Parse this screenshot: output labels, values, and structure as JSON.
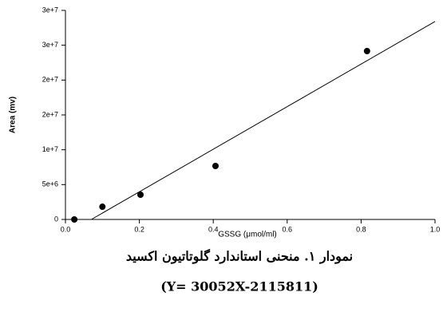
{
  "chart_data": {
    "type": "scatter",
    "xlabel": "GSSG (μmol/ml)",
    "ylabel": "Area (mv)",
    "caption": "نمودار ۱. منحنی استاندارد گلوتاتیون اکسید",
    "equation": "(Y= 30052X-2115811)",
    "x": [
      0.024,
      0.1,
      0.203,
      0.406,
      0.816
    ],
    "values": [
      0,
      1830000,
      3550000,
      7670000,
      24160000
    ],
    "color": "#000000",
    "fit": {
      "x": [
        0.07,
        1.0
      ],
      "values": [
        0,
        28400000
      ],
      "color": "#000000"
    },
    "xlim": [
      0,
      1
    ],
    "ylim": [
      0,
      30000000
    ],
    "xticks": [
      {
        "value": 0,
        "label": "0.0"
      },
      0.2,
      0.4,
      0.6,
      0.8,
      {
        "value": 1,
        "label": "1.0"
      }
    ],
    "yticks": [
      0,
      {
        "value": 5000000,
        "label": "5e+6"
      },
      {
        "value": 10000000,
        "label": "1e+7"
      },
      {
        "value": 15000000,
        "label": "2e+7"
      },
      {
        "value": 20000000,
        "label": "2e+7"
      },
      {
        "value": 25000000,
        "label": "3e+7"
      },
      {
        "value": 30000000,
        "label": "3e+7"
      }
    ],
    "grid": false
  }
}
